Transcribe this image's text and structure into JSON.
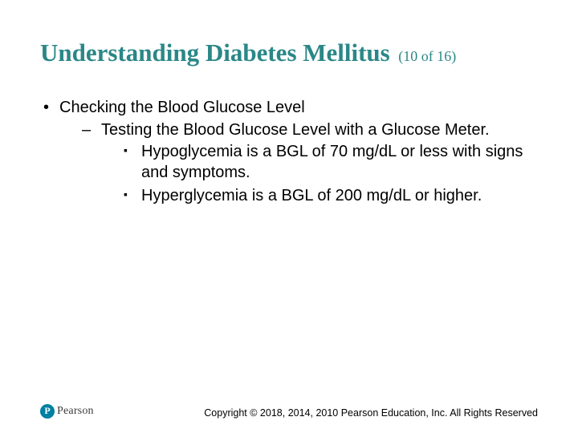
{
  "title": "Understanding Diabetes Mellitus",
  "counter": "(10 of 16)",
  "colors": {
    "title": "#2b8787",
    "text": "#000000",
    "background": "#ffffff",
    "logo_circle": "#007fa3"
  },
  "typography": {
    "title_font": "Times New Roman",
    "title_size_pt": 23,
    "title_weight": "bold",
    "counter_size_pt": 14,
    "body_font": "Arial",
    "body_size_pt": 15,
    "copyright_size_pt": 9
  },
  "bullets": {
    "lvl1": [
      {
        "text": "Checking the Blood Glucose Level",
        "lvl2": [
          {
            "text": "Testing the Blood Glucose Level with a Glucose Meter.",
            "lvl3": [
              {
                "text": "Hypoglycemia is a BGL of 70 mg/dL or less with signs and symptoms."
              },
              {
                "text": "Hyperglycemia is a BGL of 200 mg/dL or higher."
              }
            ]
          }
        ]
      }
    ]
  },
  "footer": {
    "brand": "Pearson",
    "copyright": "Copyright © 2018, 2014, 2010 Pearson Education, Inc. All Rights Reserved"
  }
}
